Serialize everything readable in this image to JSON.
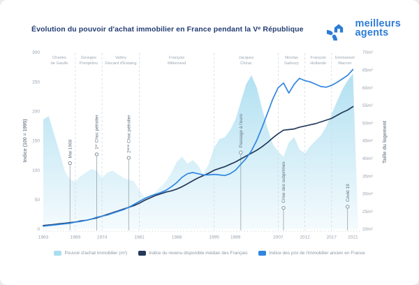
{
  "header": {
    "title": "Évolution du pouvoir d'achat immobilier en France pendant la Vᵉ République",
    "logo": {
      "line1": "meilleurs",
      "line2": "agents",
      "icon": "house-circle-icon",
      "brand_color": "#2e7cd6"
    }
  },
  "chart_data": {
    "type": "area+line",
    "title": "Évolution du pouvoir d'achat immobilier en France pendant la Vᵉ République",
    "grid": "off",
    "legend_position": "bottom",
    "years": [
      1963,
      1964,
      1965,
      1966,
      1967,
      1968,
      1969,
      1970,
      1971,
      1972,
      1973,
      1974,
      1975,
      1976,
      1977,
      1978,
      1979,
      1980,
      1981,
      1982,
      1983,
      1984,
      1985,
      1986,
      1987,
      1988,
      1989,
      1990,
      1991,
      1992,
      1993,
      1994,
      1995,
      1996,
      1997,
      1998,
      1999,
      2000,
      2001,
      2002,
      2003,
      2004,
      2005,
      2006,
      2007,
      2008,
      2009,
      2010,
      2011,
      2012,
      2013,
      2014,
      2015,
      2016,
      2017,
      2018,
      2019,
      2020,
      2021
    ],
    "x_ticks": [
      1963,
      1969,
      1974,
      1981,
      1988,
      1995,
      1999,
      2007,
      2012,
      2017,
      2021
    ],
    "left_axis": {
      "label": "Indice (100 = 1995)",
      "min": 0,
      "max": 300,
      "ticks": [
        0,
        50,
        100,
        150,
        200,
        250,
        300
      ]
    },
    "right_axis": {
      "label": "Taille du logement",
      "min": 20,
      "max": 70,
      "unit": "m²",
      "tick_labels": [
        "20m²",
        "25m²",
        "30m²",
        "35m²",
        "40m²",
        "45m²",
        "50m²",
        "55m²",
        "60m²",
        "65m²",
        "70m²"
      ],
      "tick_values": [
        20,
        25,
        30,
        35,
        40,
        45,
        50,
        55,
        60,
        65,
        70
      ]
    },
    "series": [
      {
        "name": "Pouvoir d'achat immobilier (m²)",
        "type": "area",
        "axis": "right",
        "color": "#a9ddf0",
        "values": [
          51,
          52,
          47,
          42,
          36.5,
          34,
          33.5,
          35,
          36,
          37,
          36.5,
          34.5,
          36,
          36.5,
          35.5,
          34.5,
          34,
          33.5,
          31,
          29,
          29.5,
          30.5,
          32,
          33.5,
          36,
          39,
          40.5,
          38.5,
          39.5,
          38,
          35.5,
          38.5,
          43,
          45.5,
          46,
          48,
          51,
          56,
          61,
          63.5,
          60,
          54,
          48.5,
          44,
          42,
          40.5,
          44.5,
          46,
          42.5,
          41.5,
          43.5,
          45,
          46.5,
          49,
          52.5,
          56,
          59.5,
          62,
          64
        ]
      },
      {
        "name": "Indice du revenu disponible médian des Français",
        "type": "line",
        "axis": "left",
        "color": "#24395b",
        "values": [
          6,
          7,
          8,
          9,
          10,
          11,
          12,
          14,
          15,
          17,
          19,
          22,
          25,
          28,
          31,
          34,
          37,
          40,
          44,
          49,
          53,
          57,
          60,
          63,
          65,
          68,
          72,
          77,
          82,
          87,
          91,
          95,
          100,
          103,
          106,
          110,
          114,
          119,
          124,
          129,
          134,
          140,
          147,
          155,
          162,
          168,
          169,
          170,
          173,
          175,
          177,
          179,
          182,
          185,
          188,
          193,
          198,
          202,
          208
        ]
      },
      {
        "name": "Indice des prix de l'immobilier ancien en France",
        "type": "line",
        "axis": "left",
        "color": "#2f86e0",
        "values": [
          5,
          6,
          7,
          8,
          9,
          10,
          12,
          13,
          15,
          17,
          20,
          22,
          24,
          27,
          30,
          33,
          37,
          42,
          47,
          52,
          56,
          59,
          62,
          66,
          72,
          79,
          88,
          94,
          96,
          94,
          92,
          92,
          93,
          92,
          91,
          94,
          100,
          110,
          120,
          133,
          151,
          173,
          197,
          221,
          240,
          248,
          231,
          246,
          256,
          252,
          250,
          246,
          242,
          241,
          244,
          249,
          255,
          261,
          271
        ]
      }
    ],
    "presidents": [
      {
        "line1": "Charles",
        "line2": "de Gaulle",
        "start": 1963,
        "end": 1969
      },
      {
        "line1": "Georges",
        "line2": "Pompidou",
        "start": 1969,
        "end": 1974
      },
      {
        "line1": "Valéry",
        "line2": "Giscard d'Estaing",
        "start": 1974,
        "end": 1981
      },
      {
        "line1": "François",
        "line2": "Mitterrand",
        "start": 1981,
        "end": 1995
      },
      {
        "line1": "Jacques",
        "line2": "Chirac",
        "start": 1995,
        "end": 2007
      },
      {
        "line1": "Nicolas",
        "line2": "Sarkozy",
        "start": 2007,
        "end": 2012
      },
      {
        "line1": "François",
        "line2": "Hollande",
        "start": 2012,
        "end": 2017
      },
      {
        "line1": "Emmanuel",
        "line2": "Macron",
        "start": 2017,
        "end": 2022
      }
    ],
    "events": [
      {
        "label": "Mai 1968",
        "year": 1968,
        "marker_top_index": 112
      },
      {
        "label": "1ᵉʳ Choc pétrolier",
        "year": 1973,
        "marker_top_index": 127
      },
      {
        "label": "2ᵉᵐᵉ Choc pétrolier",
        "year": 1979,
        "marker_top_index": 121
      },
      {
        "label": "Passage à l'euro",
        "year": 2000,
        "marker_top_index": 130
      },
      {
        "label": "Crise des subprimes",
        "year": 2008,
        "marker_top_index": 36
      },
      {
        "label": "Covid 19",
        "year": 2020,
        "marker_top_index": 38
      }
    ],
    "legend": [
      {
        "label": "Pouvoir d'achat immobilier (m²)",
        "color": "#a9ddf0"
      },
      {
        "label": "Indice du revenu disponible médian des Français",
        "color": "#24395b"
      },
      {
        "label": "Indice des prix de l'immobilier ancien en France",
        "color": "#2f86e0"
      }
    ]
  }
}
